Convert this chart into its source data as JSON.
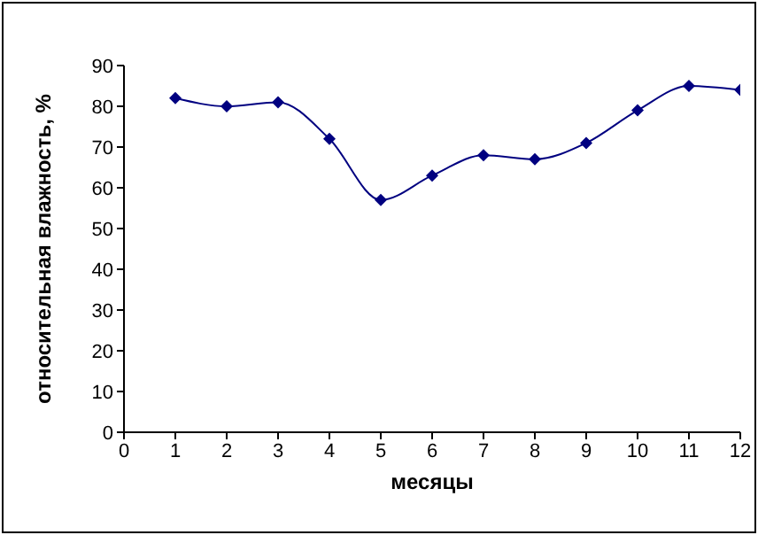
{
  "chart_data": {
    "type": "line",
    "xlabel": "месяцы",
    "ylabel": "относительная влажность, %",
    "x": [
      1,
      2,
      3,
      4,
      5,
      6,
      7,
      8,
      9,
      10,
      11,
      12
    ],
    "series": [
      {
        "color": "#000080",
        "values": [
          82,
          80,
          81,
          72,
          57,
          63,
          68,
          67,
          71,
          79,
          85,
          84
        ]
      }
    ],
    "xlim": [
      0,
      12
    ],
    "xticks": [
      0,
      1,
      2,
      3,
      4,
      5,
      6,
      7,
      8,
      9,
      10,
      11,
      12
    ],
    "ylim": [
      0,
      90
    ],
    "yticks": [
      0,
      10,
      20,
      30,
      40,
      50,
      60,
      70,
      80,
      90
    ],
    "marker": "diamond",
    "line_style": "solid",
    "grid": false,
    "legend": false
  }
}
